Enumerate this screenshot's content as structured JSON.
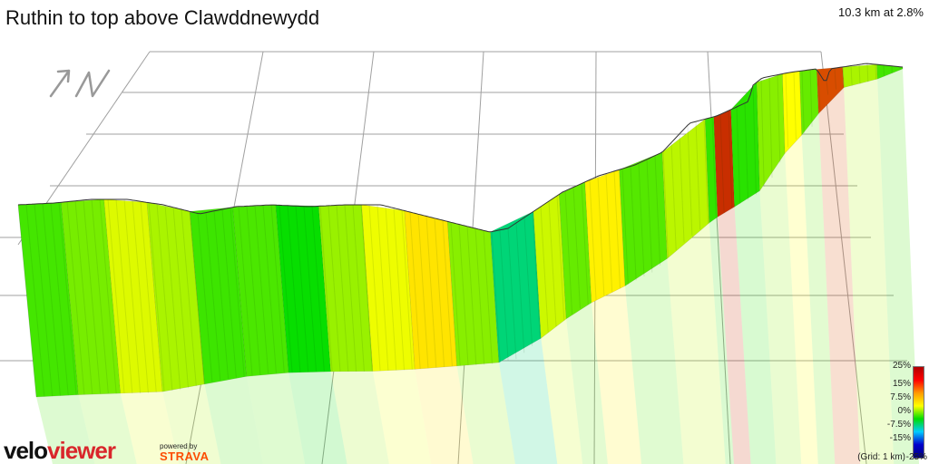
{
  "header": {
    "title": "Ruthin to top above Clawddnewydd",
    "summary": "10.3 km at 2.8%"
  },
  "legend": {
    "ticks": [
      "25%",
      "15%",
      "7.5%",
      "0%",
      "-7.5%",
      "-15%"
    ],
    "tick_values": [
      25,
      15,
      7.5,
      0,
      -7.5,
      -15
    ],
    "low_tick": "-25%",
    "grid_note": "(Grid: 1 km)",
    "gradient_colors": [
      "#b00000",
      "#ff0000",
      "#ff9900",
      "#ffff00",
      "#00dd00",
      "#00ccff",
      "#0000cc",
      "#000080"
    ]
  },
  "branding": {
    "logo_part1": "velo",
    "logo_part2": "viewer",
    "powered_by": "powered by",
    "strava": "STRAVA"
  },
  "compass": {
    "icon": "north-arrow-icon"
  },
  "colors": {
    "grid": "#a0a0a0",
    "outline": "#333333",
    "logo_red": "#d9262b",
    "strava_orange": "#fc4c02"
  },
  "chart_data": {
    "type": "area",
    "title": "Ruthin to top above Clawddnewydd",
    "distance_km": 10.3,
    "average_gradient_pct": 2.8,
    "grid_km": 1,
    "x_unit": "km",
    "xlim": [
      0,
      10.3
    ],
    "color_scale_pct": [
      -25,
      25
    ],
    "x": [
      0.0,
      0.5,
      1.0,
      1.5,
      2.0,
      2.5,
      3.0,
      3.5,
      4.0,
      4.5,
      5.0,
      5.5,
      6.0,
      6.3,
      6.6,
      7.0,
      7.5,
      8.0,
      8.1,
      8.3,
      8.6,
      8.9,
      9.1,
      9.3,
      9.6,
      10.0,
      10.3
    ],
    "gradient_pct": [
      2.0,
      3.5,
      6.5,
      5.0,
      1.8,
      2.2,
      0.2,
      4.5,
      7.0,
      9.5,
      4.0,
      -3.5,
      6.0,
      3.0,
      8.5,
      2.5,
      5.5,
      1.5,
      22.0,
      1.2,
      4.0,
      7.5,
      3.0,
      20.0,
      5.0,
      2.0,
      1.0
    ]
  }
}
